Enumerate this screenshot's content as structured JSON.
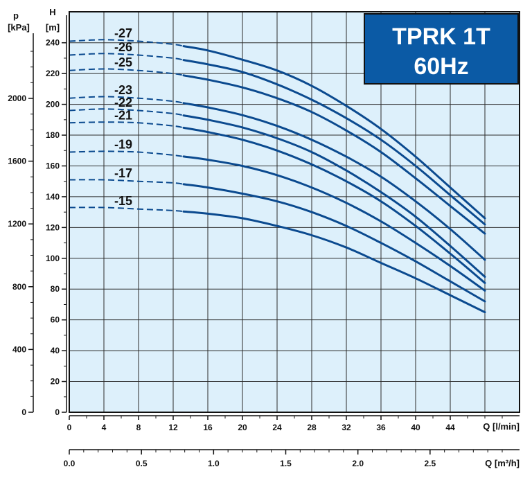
{
  "chart_data": {
    "type": "line",
    "title": [
      "TPRK 1T",
      "60Hz"
    ],
    "colors": {
      "plot_bg": "#ddf0fb",
      "grid": "#222222",
      "curve": "#0b4a8f",
      "title_bg": "#0b5aa5"
    },
    "grid": true,
    "x_axis": {
      "label": "Q [l/min]",
      "range": [
        0,
        52
      ],
      "ticks": [
        "0",
        "4",
        "8",
        "12",
        "16",
        "20",
        "24",
        "28",
        "32",
        "36",
        "40",
        "44"
      ]
    },
    "x2_axis": {
      "label": "Q [m³/h]",
      "range": [
        0,
        3.12
      ],
      "ticks": [
        "0.0",
        "0.5",
        "1.0",
        "1.5",
        "2.0",
        "2.5"
      ]
    },
    "y_axis": {
      "label_top": "H",
      "label_unit": "[m]",
      "range": [
        0,
        250
      ],
      "ticks": [
        "0",
        "20",
        "40",
        "60",
        "80",
        "100",
        "120",
        "140",
        "160",
        "180",
        "200",
        "220",
        "240"
      ]
    },
    "y2_axis": {
      "label_top": "p",
      "label_unit": "[kPa]",
      "range": [
        0,
        2450
      ],
      "ticks": [
        "0",
        "400",
        "800",
        "1200",
        "1600",
        "2000"
      ]
    },
    "dashed_until_x": 13.2,
    "series": [
      {
        "name": "-27",
        "values": [
          [
            0,
            241
          ],
          [
            4,
            242
          ],
          [
            8,
            241
          ],
          [
            12,
            239
          ],
          [
            16,
            235
          ],
          [
            20,
            229
          ],
          [
            24,
            222
          ],
          [
            28,
            212
          ],
          [
            32,
            199
          ],
          [
            36,
            184
          ],
          [
            40,
            166
          ],
          [
            44,
            146
          ],
          [
            48,
            126
          ]
        ]
      },
      {
        "name": "-26",
        "values": [
          [
            0,
            232
          ],
          [
            4,
            233
          ],
          [
            8,
            232
          ],
          [
            12,
            230
          ],
          [
            16,
            226
          ],
          [
            20,
            221
          ],
          [
            24,
            213
          ],
          [
            28,
            203
          ],
          [
            32,
            191
          ],
          [
            36,
            177
          ],
          [
            40,
            160
          ],
          [
            44,
            141
          ],
          [
            48,
            122
          ]
        ]
      },
      {
        "name": "-25",
        "values": [
          [
            0,
            222
          ],
          [
            4,
            223
          ],
          [
            8,
            222
          ],
          [
            12,
            220
          ],
          [
            16,
            216
          ],
          [
            20,
            211
          ],
          [
            24,
            204
          ],
          [
            28,
            195
          ],
          [
            32,
            183
          ],
          [
            36,
            169
          ],
          [
            40,
            152
          ],
          [
            44,
            134
          ],
          [
            48,
            116
          ]
        ]
      },
      {
        "name": "-23",
        "values": [
          [
            0,
            204
          ],
          [
            4,
            205
          ],
          [
            8,
            204
          ],
          [
            12,
            202
          ],
          [
            16,
            198
          ],
          [
            20,
            193
          ],
          [
            24,
            186
          ],
          [
            28,
            177
          ],
          [
            32,
            166
          ],
          [
            36,
            153
          ],
          [
            40,
            137
          ],
          [
            44,
            119
          ],
          [
            48,
            99
          ]
        ]
      },
      {
        "name": "-22",
        "values": [
          [
            0,
            196
          ],
          [
            4,
            197
          ],
          [
            8,
            196
          ],
          [
            12,
            194
          ],
          [
            16,
            190
          ],
          [
            20,
            185
          ],
          [
            24,
            178
          ],
          [
            28,
            169
          ],
          [
            32,
            157
          ],
          [
            36,
            143
          ],
          [
            40,
            127
          ],
          [
            44,
            108
          ],
          [
            48,
            88
          ]
        ]
      },
      {
        "name": "-21",
        "values": [
          [
            0,
            188
          ],
          [
            4,
            188.5
          ],
          [
            8,
            188
          ],
          [
            12,
            186
          ],
          [
            16,
            182
          ],
          [
            20,
            177
          ],
          [
            24,
            170
          ],
          [
            28,
            161
          ],
          [
            32,
            150
          ],
          [
            36,
            137
          ],
          [
            40,
            121
          ],
          [
            44,
            103
          ],
          [
            48,
            84
          ]
        ]
      },
      {
        "name": "-19",
        "values": [
          [
            0,
            169
          ],
          [
            4,
            169.5
          ],
          [
            8,
            169
          ],
          [
            12,
            167
          ],
          [
            16,
            164
          ],
          [
            20,
            160
          ],
          [
            24,
            154
          ],
          [
            28,
            146
          ],
          [
            32,
            136
          ],
          [
            36,
            124
          ],
          [
            40,
            110
          ],
          [
            44,
            95
          ],
          [
            48,
            79
          ]
        ]
      },
      {
        "name": "-17",
        "values": [
          [
            0,
            151
          ],
          [
            4,
            151
          ],
          [
            8,
            150
          ],
          [
            12,
            149
          ],
          [
            16,
            146
          ],
          [
            20,
            142
          ],
          [
            24,
            137
          ],
          [
            28,
            130
          ],
          [
            32,
            121
          ],
          [
            36,
            110
          ],
          [
            40,
            98
          ],
          [
            44,
            85
          ],
          [
            48,
            72
          ]
        ]
      },
      {
        "name": "-15",
        "values": [
          [
            0,
            133
          ],
          [
            4,
            133
          ],
          [
            8,
            132
          ],
          [
            12,
            131
          ],
          [
            16,
            129
          ],
          [
            20,
            126
          ],
          [
            24,
            121
          ],
          [
            28,
            115
          ],
          [
            32,
            107
          ],
          [
            36,
            97
          ],
          [
            40,
            87
          ],
          [
            44,
            76
          ],
          [
            48,
            65
          ]
        ]
      }
    ]
  }
}
